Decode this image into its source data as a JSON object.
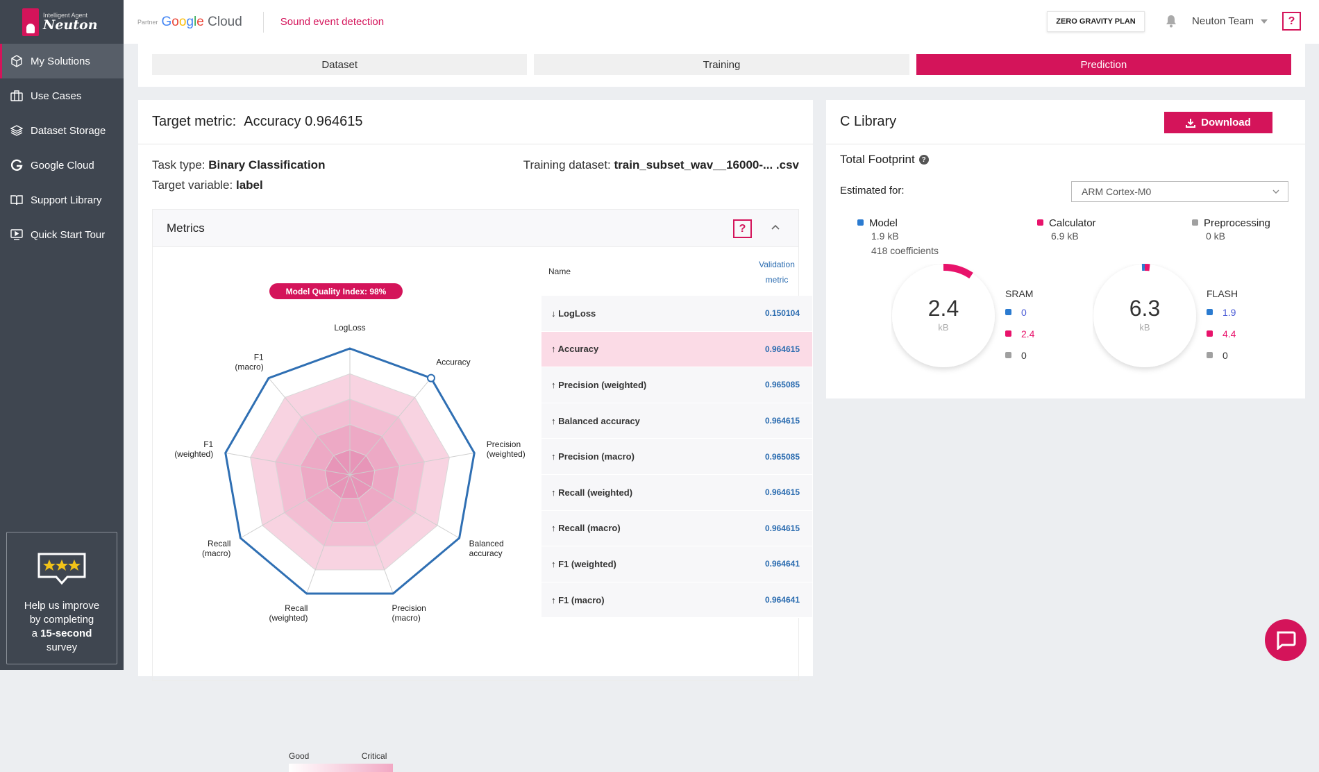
{
  "brand": {
    "tagline": "Intelligent Agent",
    "name": "Neuton"
  },
  "sidebar": {
    "items": [
      {
        "label": "My Solutions",
        "icon": "cube-icon",
        "active": true
      },
      {
        "label": "Use Cases",
        "icon": "briefcase-icon"
      },
      {
        "label": "Dataset Storage",
        "icon": "layers-icon"
      },
      {
        "label": "Google Cloud",
        "icon": "google-g-icon"
      },
      {
        "label": "Support Library",
        "icon": "book-icon"
      },
      {
        "label": "Quick Start Tour",
        "icon": "video-icon"
      }
    ],
    "survey": {
      "line1": "Help us improve",
      "line2": "by completing",
      "line3a": "a ",
      "line3b": "15-second",
      "line4": "survey"
    }
  },
  "topbar": {
    "partner_label": "Partner",
    "google": {
      "g1": "G",
      "o1": "o",
      "o2": "o",
      "g2": "g",
      "l": "l",
      "e": "e",
      "cloud": " Cloud"
    },
    "project": "Sound event detection",
    "plan": "ZERO GRAVITY PLAN",
    "team": "Neuton Team",
    "help": "?"
  },
  "tabs": [
    {
      "label": "Dataset"
    },
    {
      "label": "Training"
    },
    {
      "label": "Prediction",
      "active": true
    }
  ],
  "left": {
    "title_label": "Target metric:",
    "title_value": "Accuracy 0.964615",
    "task_type_label": "Task type:",
    "task_type": "Binary Classification",
    "target_var_label": "Target variable:",
    "target_var": "label",
    "training_label": "Training dataset:",
    "training": "train_subset_wav__16000-... .csv",
    "metrics_title": "Metrics",
    "help": "?",
    "mqi": "Model Quality Index: 98%",
    "table": {
      "col_name": "Name",
      "col_val1": "Validation",
      "col_val2": "metric",
      "rows": [
        {
          "dir": "↓",
          "name": "LogLoss",
          "value": "0.150104"
        },
        {
          "dir": "↑",
          "name": "Accuracy",
          "value": "0.964615"
        },
        {
          "dir": "↑",
          "name": "Precision (weighted)",
          "value": "0.965085"
        },
        {
          "dir": "↑",
          "name": "Balanced accuracy",
          "value": "0.964615"
        },
        {
          "dir": "↑",
          "name": "Precision (macro)",
          "value": "0.965085"
        },
        {
          "dir": "↑",
          "name": "Recall (weighted)",
          "value": "0.964615"
        },
        {
          "dir": "↑",
          "name": "Recall (macro)",
          "value": "0.964615"
        },
        {
          "dir": "↑",
          "name": "F1 (weighted)",
          "value": "0.964641"
        },
        {
          "dir": "↑",
          "name": "F1 (macro)",
          "value": "0.964641"
        }
      ]
    },
    "scale": {
      "good": "Good",
      "critical": "Critical"
    }
  },
  "chart_data": {
    "type": "radar",
    "axes": [
      [
        "LogLoss"
      ],
      [
        "Accuracy"
      ],
      [
        "Precision",
        "(weighted)"
      ],
      [
        "Balanced",
        "accuracy"
      ],
      [
        "Precision",
        "(macro)"
      ],
      [
        "Recall",
        "(weighted)"
      ],
      [
        "Recall",
        "(macro)"
      ],
      [
        "F1",
        "(weighted)"
      ],
      [
        "F1",
        "(macro)"
      ]
    ],
    "values": [
      1,
      1,
      1,
      1,
      1,
      1,
      1,
      1,
      1
    ],
    "rings": 5,
    "range": [
      0,
      1
    ],
    "highlighted_axis": 1
  },
  "right": {
    "title": "C Library",
    "download": "Download",
    "total": "Total Footprint",
    "help": "?",
    "estimated": "Estimated for:",
    "target": "ARM Cortex-M0",
    "legend": {
      "model": {
        "label": "Model",
        "size": "1.9 kB",
        "coef": "418 coefficients",
        "color": "#2b7bd0"
      },
      "calc": {
        "label": "Calculator",
        "size": "6.9 kB",
        "color": "#e8136b"
      },
      "pre": {
        "label": "Preprocessing",
        "size": "0 kB",
        "color": "#a0a0a0"
      }
    },
    "sram": {
      "value": "2.4",
      "unit": "kB",
      "title": "SRAM",
      "model": "0",
      "calc": "2.4",
      "pre": "0"
    },
    "flash": {
      "value": "6.3",
      "unit": "kB",
      "title": "FLASH",
      "model": "1.9",
      "calc": "4.4",
      "pre": "0"
    }
  }
}
